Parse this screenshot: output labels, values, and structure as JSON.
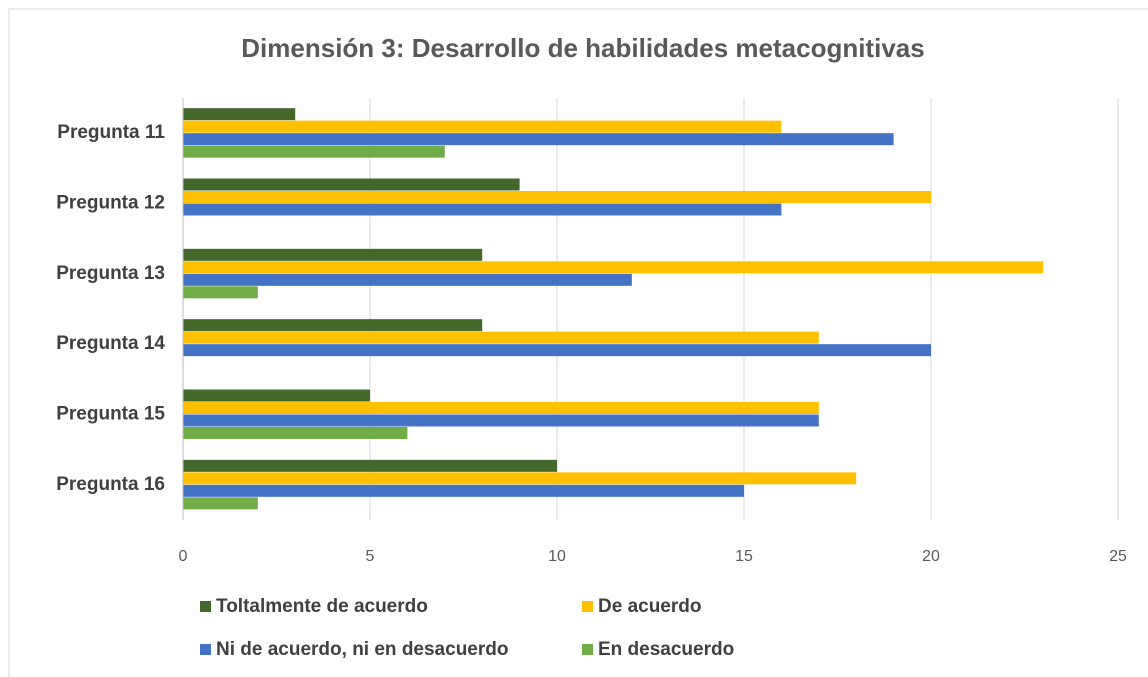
{
  "chart_data": {
    "type": "bar",
    "orientation": "horizontal",
    "title": "Dimensión 3: Desarrollo de habilidades metacognitivas",
    "categories": [
      "Pregunta 11",
      "Pregunta 12",
      "Pregunta 13",
      "Pregunta 14",
      "Pregunta 15",
      "Pregunta 16"
    ],
    "series": [
      {
        "name": "Toltalmente de acuerdo",
        "color": "#43682b",
        "values": [
          3,
          9,
          8,
          8,
          5,
          10
        ]
      },
      {
        "name": "De acuerdo",
        "color": "#ffc000",
        "values": [
          16,
          20,
          23,
          17,
          17,
          18
        ]
      },
      {
        "name": "Ni de acuerdo, ni en desacuerdo",
        "color": "#4472c4",
        "values": [
          19,
          16,
          12,
          20,
          17,
          15
        ]
      },
      {
        "name": "En desacuerdo",
        "color": "#70ad47",
        "values": [
          7,
          0,
          2,
          0,
          6,
          2
        ]
      }
    ],
    "xlim": [
      0,
      25
    ],
    "xticks": [
      0,
      5,
      10,
      15,
      20,
      25
    ],
    "grid": true,
    "legend": "bottom"
  }
}
